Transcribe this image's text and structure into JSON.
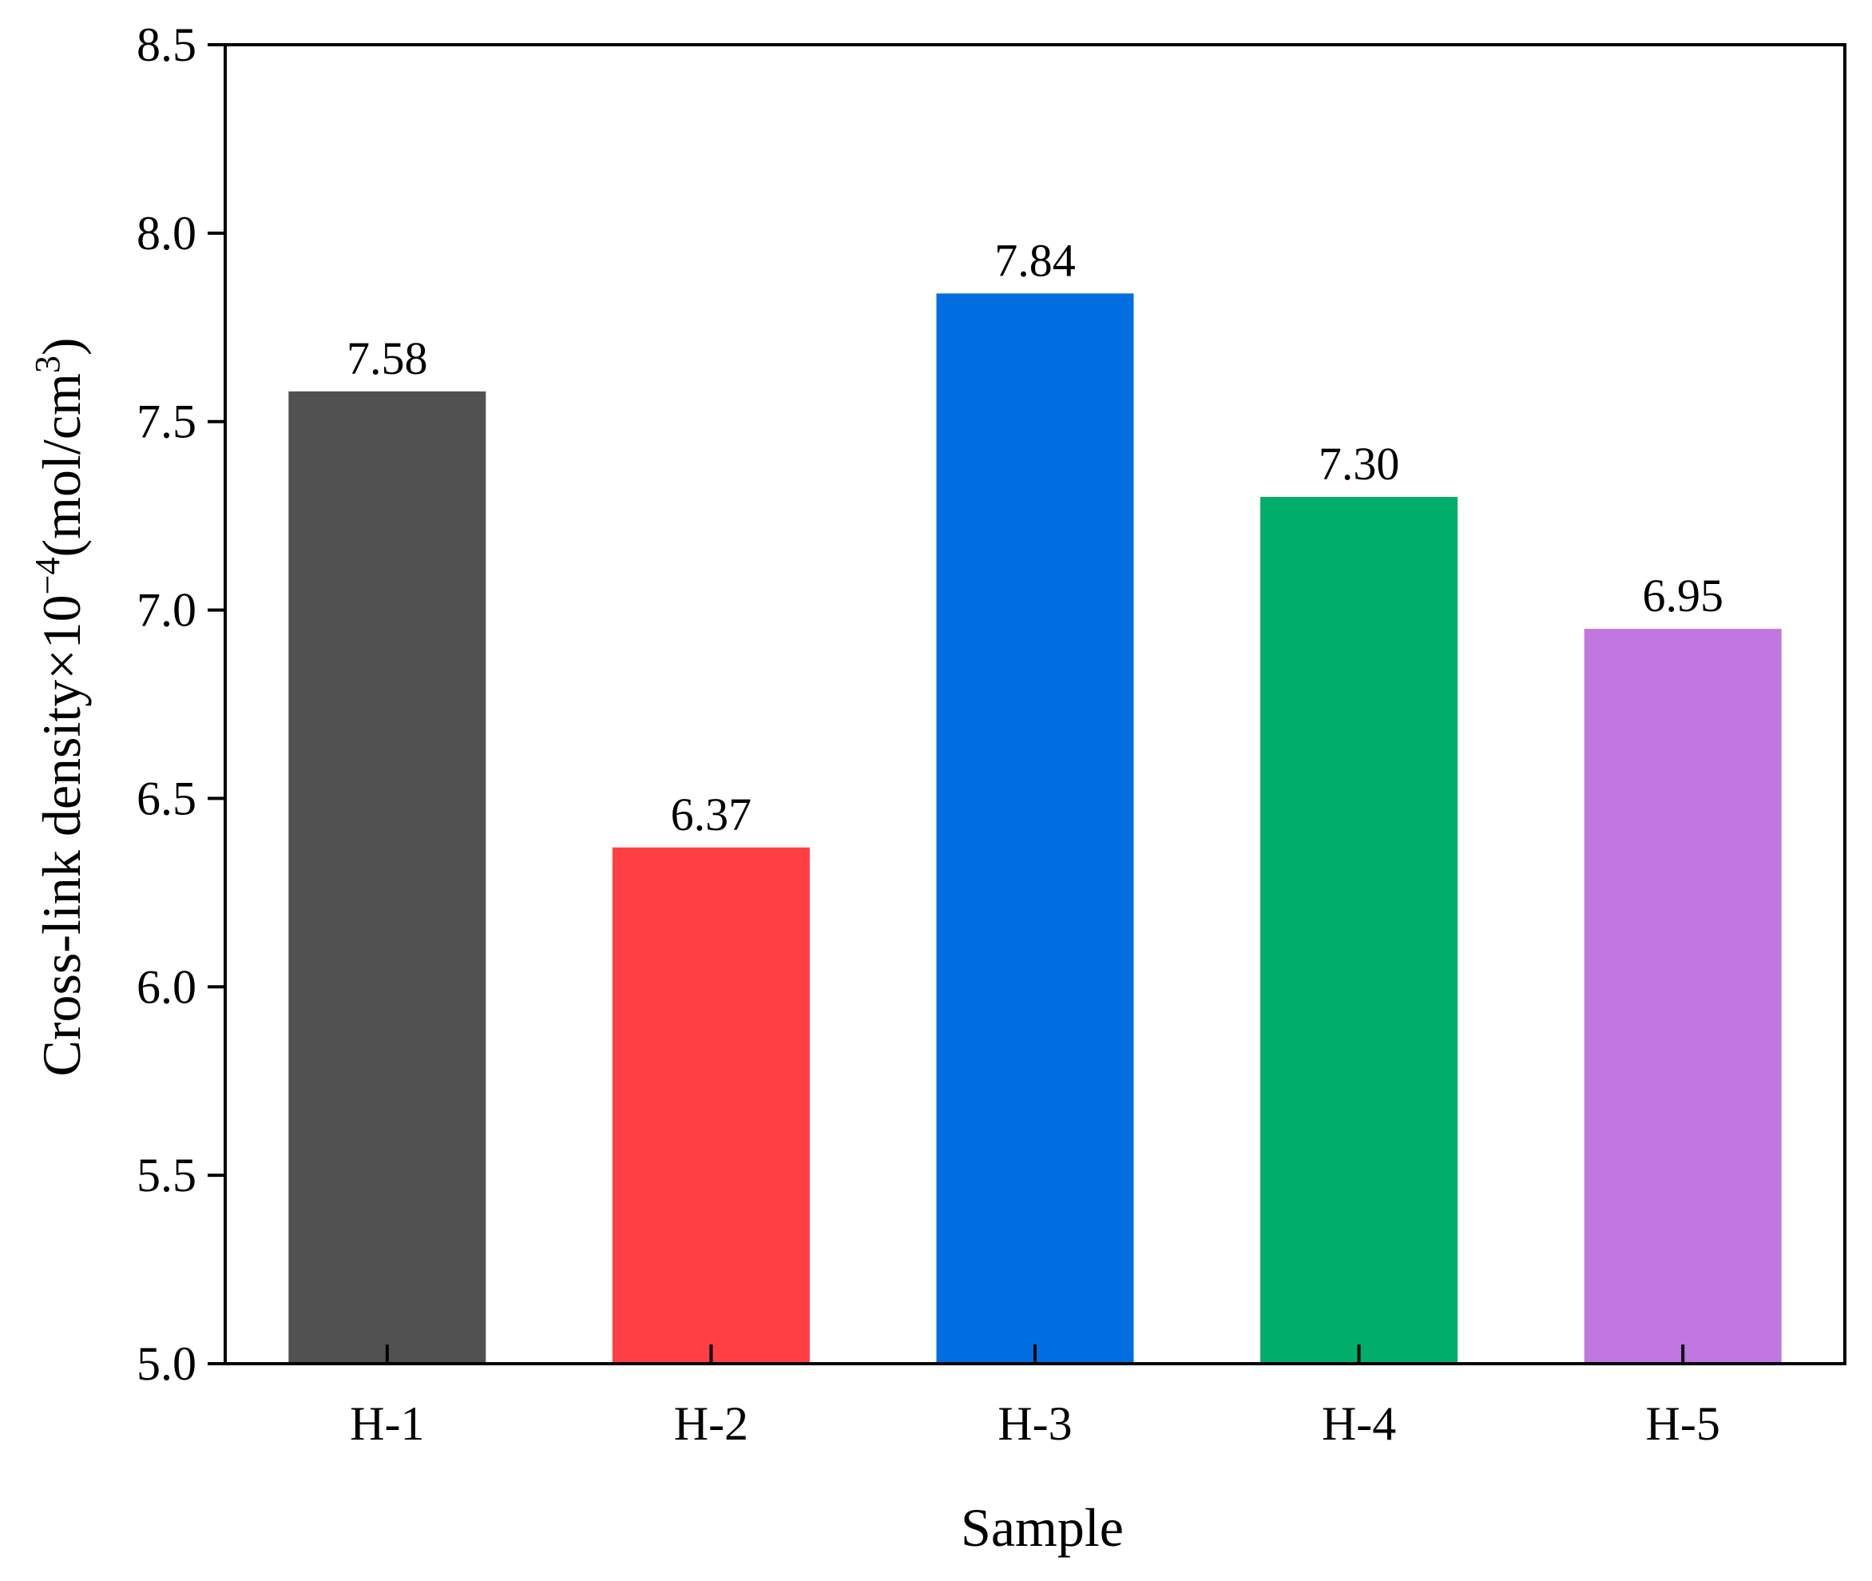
{
  "chart_data": {
    "type": "bar",
    "title": "",
    "xlabel": "Sample",
    "ylabel": {
      "main": "Cross-link density×10",
      "exponent": "−4",
      "unit_open": "(mol/cm",
      "unit_exponent": "3",
      "unit_close": ")"
    },
    "categories": [
      "H-1",
      "H-2",
      "H-3",
      "H-4",
      "H-5"
    ],
    "values": [
      7.58,
      6.37,
      7.84,
      7.3,
      6.95
    ],
    "value_labels": [
      "7.58",
      "6.37",
      "7.84",
      "7.30",
      "6.95"
    ],
    "colors": [
      "#515151",
      "#ff3f43",
      "#006ee0",
      "#00ad6a",
      "#c077e0"
    ],
    "ylim": [
      5.0,
      8.5
    ],
    "yticks": [
      5.0,
      5.5,
      6.0,
      6.5,
      7.0,
      7.5,
      8.0,
      8.5
    ],
    "ytick_labels": [
      "5.0",
      "5.5",
      "6.0",
      "6.5",
      "7.0",
      "7.5",
      "8.0",
      "8.5"
    ],
    "grid": false,
    "legend": "none"
  }
}
